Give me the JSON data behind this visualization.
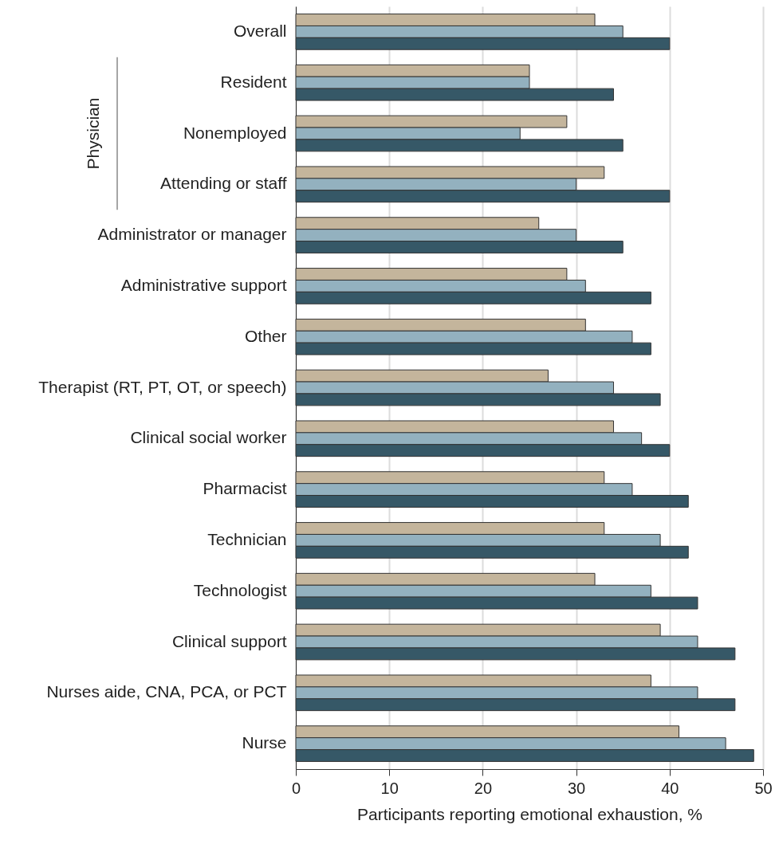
{
  "chart_data": {
    "type": "bar",
    "orientation": "horizontal",
    "xlabel": "Participants reporting emotional exhaustion, %",
    "categories": [
      "Overall",
      "Resident",
      "Nonemployed",
      "Attending or staff",
      "Administrator or manager",
      "Administrative support",
      "Other",
      "Therapist (RT, PT, OT, or speech)",
      "Clinical social worker",
      "Pharmacist",
      "Technician",
      "Technologist",
      "Clinical support",
      "Nurses aide, CNA, PCA, or PCT",
      "Nurse"
    ],
    "series": [
      {
        "color": "#c4b59c",
        "values": [
          32,
          25,
          29,
          33,
          26,
          29,
          31,
          27,
          34,
          33,
          33,
          32,
          39,
          38,
          41
        ]
      },
      {
        "color": "#93b1bf",
        "values": [
          35,
          25,
          24,
          30,
          30,
          31,
          36,
          34,
          37,
          36,
          39,
          38,
          43,
          43,
          46
        ]
      },
      {
        "color": "#365867",
        "values": [
          40,
          34,
          35,
          40,
          35,
          38,
          38,
          39,
          40,
          42,
          42,
          43,
          47,
          47,
          49
        ]
      }
    ],
    "xlim": [
      0,
      50
    ],
    "xticks": [
      0,
      10,
      20,
      30,
      40,
      50
    ],
    "grid": "x",
    "annotations": [
      "Physician"
    ]
  }
}
